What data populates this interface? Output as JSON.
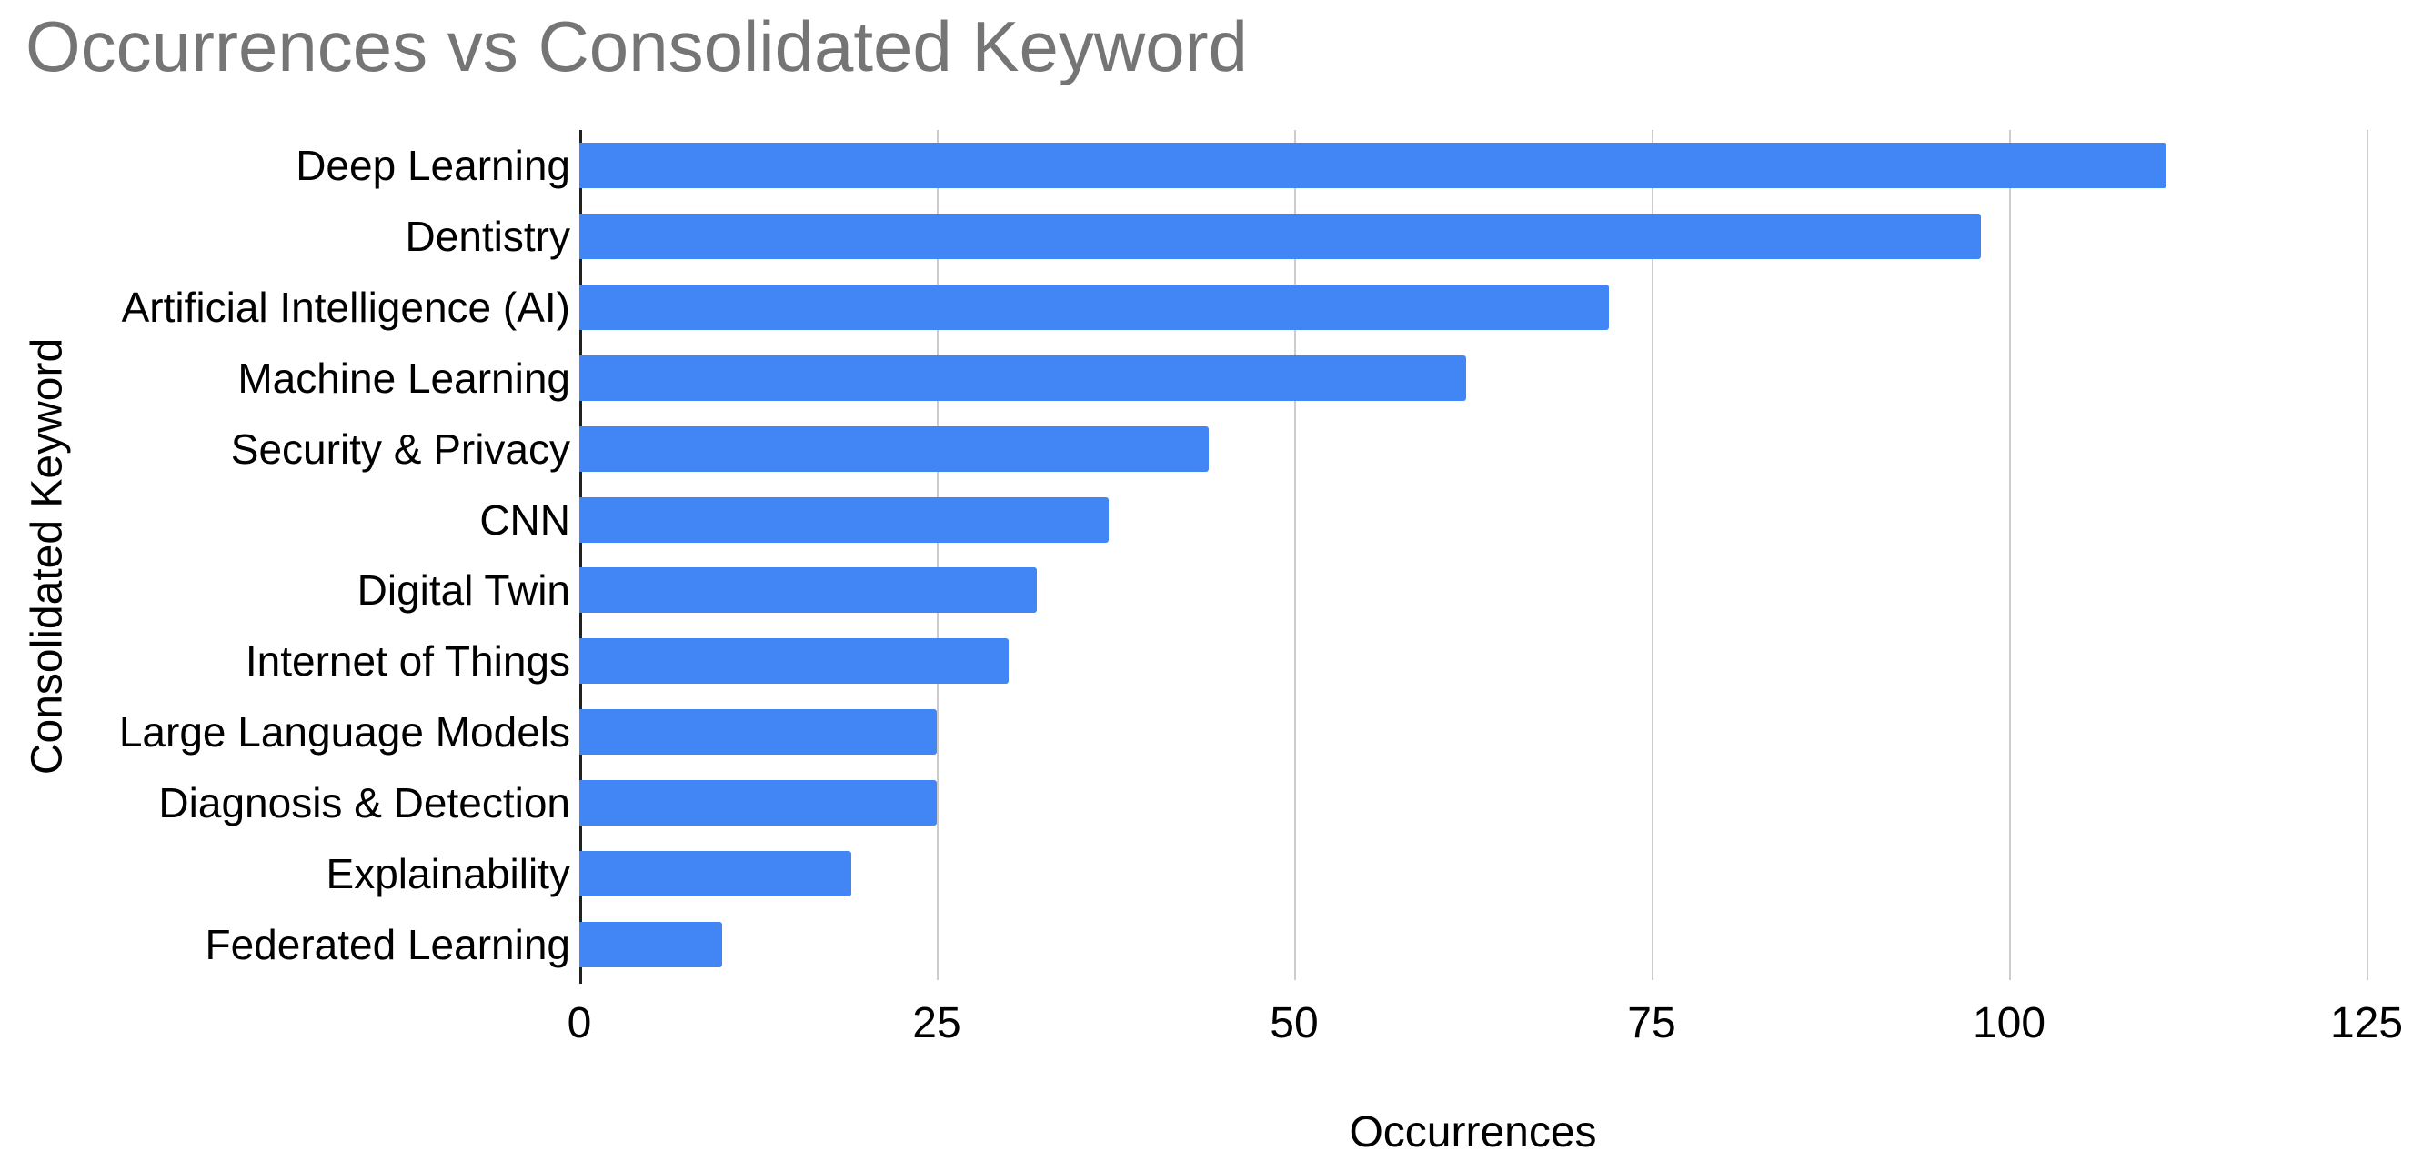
{
  "title": "Occurrences vs Consolidated Keyword",
  "x_axis": {
    "label": "Occurrences",
    "ticks": [
      0,
      25,
      50,
      75,
      100,
      125
    ],
    "range": [
      0,
      125
    ]
  },
  "y_axis": {
    "label": "Consolidated Keyword"
  },
  "colors": {
    "bar": "#4285f4",
    "title": "#757575",
    "gridline": "#cccccc",
    "baseline": "#212121",
    "axis_text": "#000000"
  },
  "chart_data": {
    "type": "bar",
    "orientation": "horizontal",
    "title": "Occurrences vs Consolidated Keyword",
    "xlabel": "Occurrences",
    "ylabel": "Consolidated Keyword",
    "categories": [
      "Deep Learning",
      "Dentistry",
      "Artificial Intelligence (AI)",
      "Machine Learning",
      "Security & Privacy",
      "CNN",
      "Digital Twin",
      "Internet of Things",
      "Large Language Models",
      "Diagnosis & Detection",
      "Explainability",
      "Federated Learning"
    ],
    "values": [
      111,
      98,
      72,
      62,
      44,
      37,
      32,
      30,
      25,
      25,
      19,
      10
    ],
    "xlim": [
      0,
      125
    ],
    "xticks": [
      0,
      25,
      50,
      75,
      100,
      125
    ],
    "grid": "vertical-only",
    "legend": "none",
    "bar_color": "#4285f4"
  }
}
